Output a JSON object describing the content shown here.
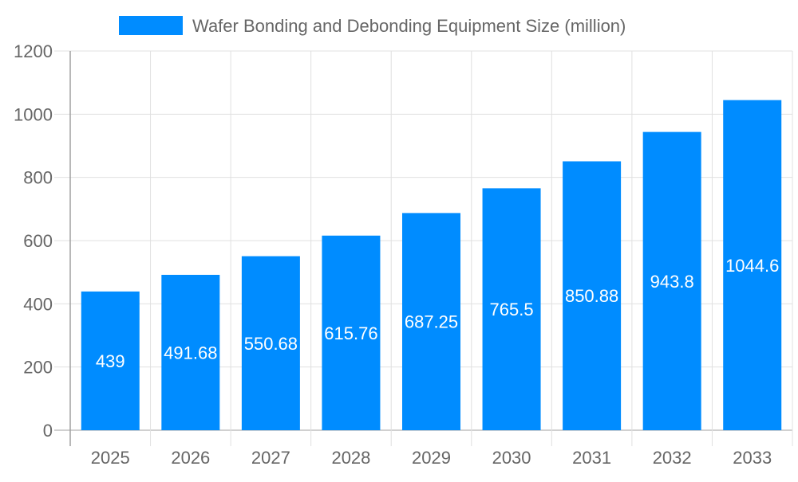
{
  "chart_data": {
    "type": "bar",
    "title": "",
    "xlabel": "",
    "ylabel": "",
    "categories": [
      "2025",
      "2026",
      "2027",
      "2028",
      "2029",
      "2030",
      "2031",
      "2032",
      "2033"
    ],
    "series": [
      {
        "name": "Wafer Bonding and Debonding Equipment Size (million)",
        "values": [
          439,
          491.68,
          550.68,
          615.76,
          687.25,
          765.5,
          850.88,
          943.8,
          1044.6
        ]
      }
    ],
    "data_labels": [
      "439",
      "491.68",
      "550.68",
      "615.76",
      "687.25",
      "765.5",
      "850.88",
      "943.8",
      "1044.6"
    ],
    "ylim": [
      0,
      1200
    ],
    "yticks": [
      "0",
      "200",
      "400",
      "600",
      "800",
      "1000",
      "1200"
    ],
    "grid": true,
    "legend": "top",
    "colors": {
      "bar": "#008cff",
      "grid": "#e0e0e0",
      "axis": "#a0a0a0",
      "text": "#666666",
      "label": "#ffffff"
    }
  }
}
